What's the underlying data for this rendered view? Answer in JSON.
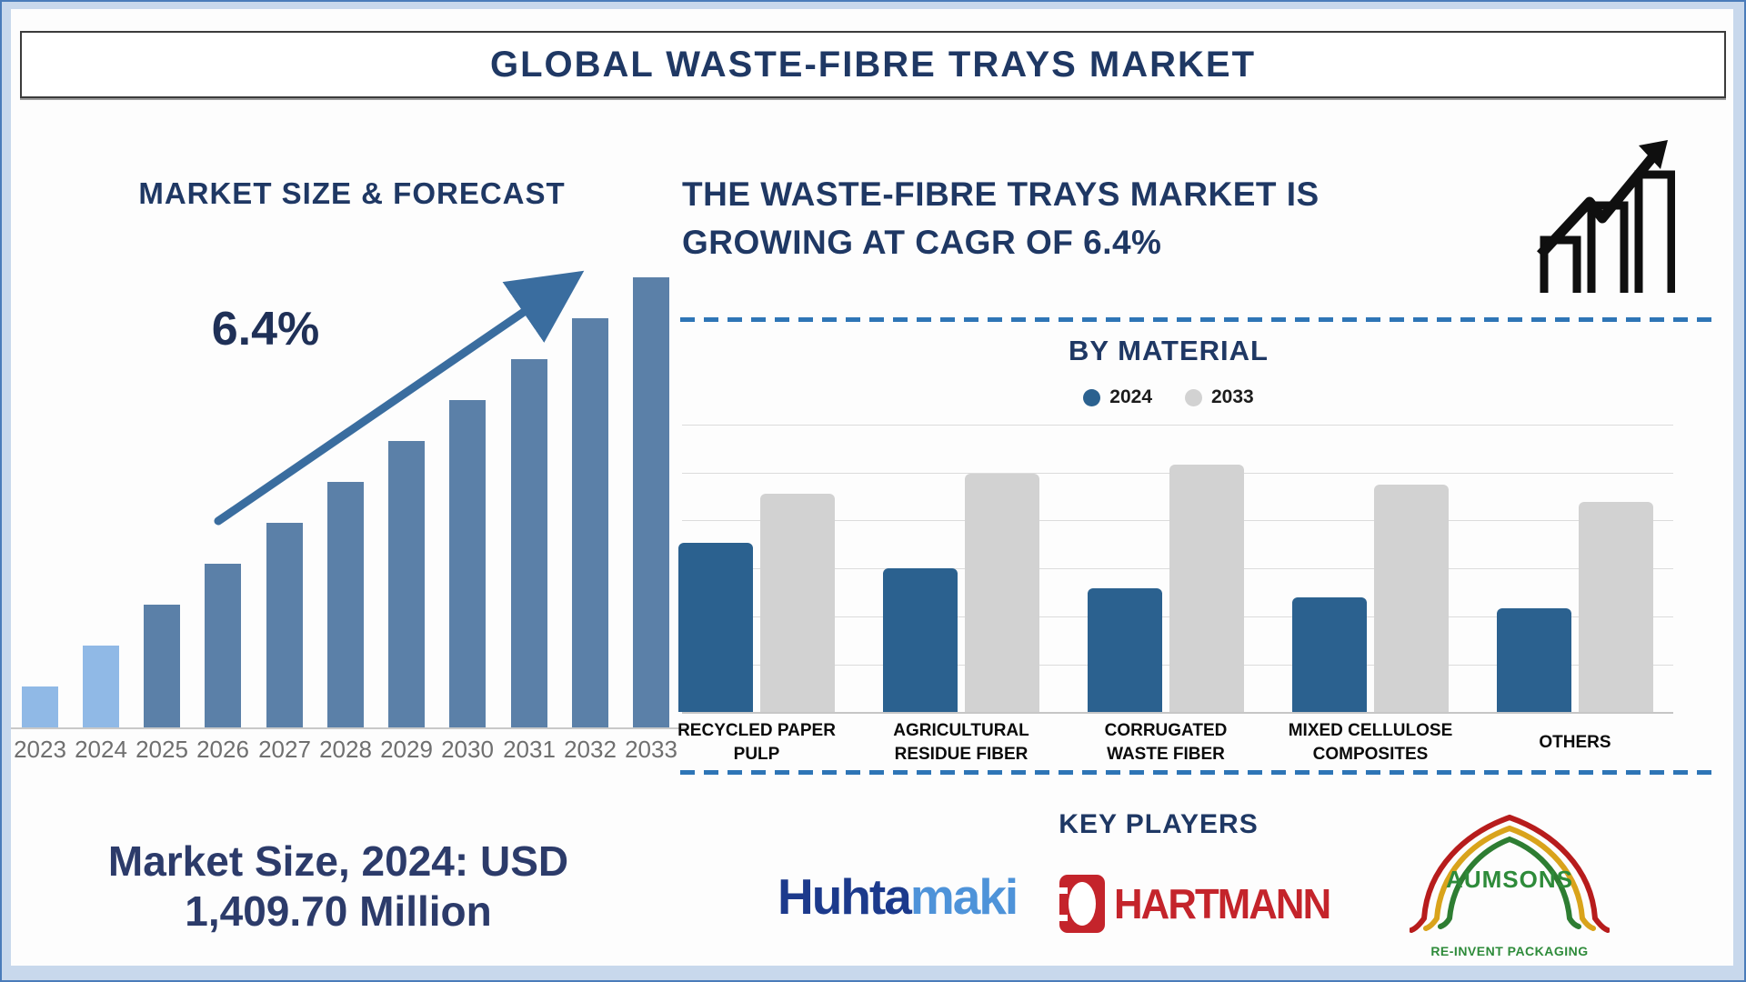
{
  "page": {
    "title": "GLOBAL WASTE-FIBRE TRAYS MARKET",
    "colors": {
      "navy": "#1f3864",
      "frame_band": "#c8d8ec",
      "frame_border": "#4a7cba",
      "dashed_divider": "#2e75b6"
    }
  },
  "left_panel": {
    "chart_title": "MARKET SIZE & FORECAST",
    "cagr_label": "6.4%",
    "market_note": "Market Size, 2024: USD\n1,409.70 Million"
  },
  "right_panel": {
    "headline": "THE WASTE-FIBRE TRAYS MARKET IS\nGROWING AT CAGR OF 6.4%",
    "by_material_title": "BY MATERIAL",
    "key_players_title": "KEY PLAYERS",
    "growth_icon": "rising-bar-chart-with-arrow",
    "players": [
      {
        "name": "Huhtamaki",
        "part1": "Huhta",
        "part2": "maki",
        "color1": "#1c3a8c",
        "color2": "#4e93d9"
      },
      {
        "name": "HARTMANN",
        "label": "HARTMANN",
        "color": "#c4242b"
      },
      {
        "name": "AUMSONS",
        "label": "AUMSONS",
        "tagline": "RE-INVENT PACKAGING",
        "green": "#2e8b3a",
        "arch_colors": [
          "#b71c1c",
          "#d9a31b",
          "#2e7d32"
        ]
      }
    ]
  },
  "chart_data": [
    {
      "id": "market-size-forecast",
      "type": "bar",
      "title": "MARKET SIZE & FORECAST",
      "categories": [
        "2023",
        "2024",
        "2025",
        "2026",
        "2027",
        "2028",
        "2029",
        "2030",
        "2031",
        "2032",
        "2033"
      ],
      "values_pct_of_max": [
        9.1,
        18.2,
        27.3,
        36.4,
        45.5,
        54.5,
        63.6,
        72.7,
        81.8,
        90.9,
        100
      ],
      "anchor": {
        "year": "2024",
        "value": "USD 1,409.70 Million"
      },
      "cagr": "6.4%",
      "historic_years": [
        "2023",
        "2024"
      ],
      "historic_color": "#90b9e6",
      "forecast_color": "#5b80a8",
      "arrow_color": "#3a6d9f",
      "xlabel": "",
      "ylabel": "",
      "grid": false,
      "note": "no y-axis shown; annotation arrow with 6.4% CAGR"
    },
    {
      "id": "by-material",
      "type": "grouped-bar",
      "title": "BY MATERIAL",
      "categories": [
        "RECYCLED PAPER\nPULP",
        "AGRICULTURAL\nRESIDUE FIBER",
        "CORRUGATED\nWASTE FIBER",
        "MIXED CELLULOSE\nCOMPOSITES",
        "OTHERS"
      ],
      "series": [
        {
          "name": "2024",
          "color": "#2b618f",
          "values_pct": [
            59,
            50,
            43,
            40,
            36
          ]
        },
        {
          "name": "2033",
          "color": "#d2d2d2",
          "values_pct": [
            76,
            83,
            86,
            79,
            73
          ]
        }
      ],
      "ylim_pct": [
        0,
        100
      ],
      "grid": true,
      "legend_position": "top"
    }
  ]
}
